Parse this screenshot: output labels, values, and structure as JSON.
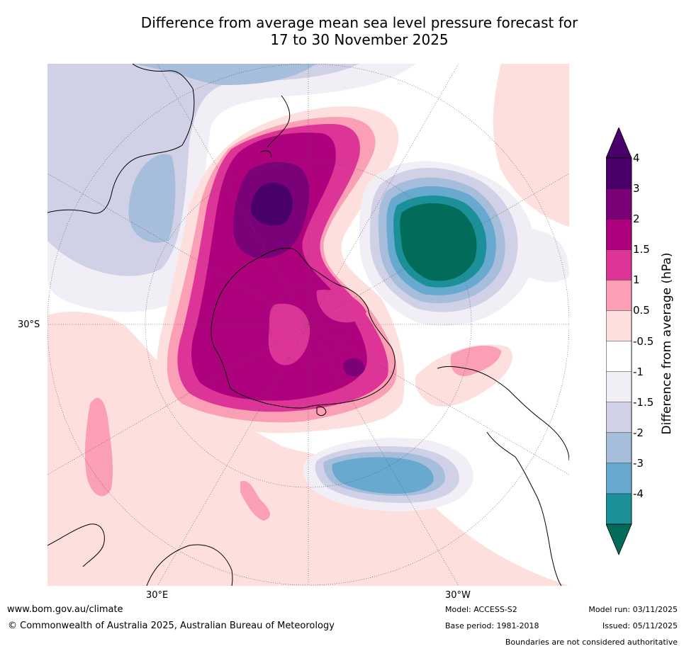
{
  "title": {
    "line1": "Difference from average mean sea level pressure forecast for",
    "line2": "17 to 30 November 2025"
  },
  "map": {
    "projection": "south-polar-stereographic",
    "region": "Southern Hemisphere, Australia centred",
    "gridlines": {
      "latitude_label": "30°S",
      "longitude_labels": [
        "30°E",
        "30°W"
      ]
    },
    "features": [
      {
        "name": "strong-positive-anomaly-over-australia",
        "value_hpa": 3
      },
      {
        "name": "positive-core-over-nt-qld",
        "value_hpa": 4
      },
      {
        "name": "negative-anomaly-east-of-australia",
        "value_hpa": -4
      },
      {
        "name": "negative-anomaly-south-of-south-america",
        "value_hpa": -3
      },
      {
        "name": "negative-anomaly-indian-ocean",
        "value_hpa": -1.5
      }
    ]
  },
  "colorbar": {
    "title": "Difference from average (hPa)",
    "levels": [
      {
        "label": "4",
        "color": "#49006a"
      },
      {
        "label": "3",
        "color": "#7a0177"
      },
      {
        "label": "2",
        "color": "#ae017e"
      },
      {
        "label": "1.5",
        "color": "#dd3497"
      },
      {
        "label": "1",
        "color": "#fa9fb5"
      },
      {
        "label": "0.5",
        "color": "#fde0dd"
      },
      {
        "label": "-0.5",
        "color": "#ffffff"
      },
      {
        "label": "-1",
        "color": "#f1eef6"
      },
      {
        "label": "-1.5",
        "color": "#d0d1e6"
      },
      {
        "label": "-2",
        "color": "#a6bddb"
      },
      {
        "label": "-3",
        "color": "#67a9cf"
      },
      {
        "label": "-4",
        "color": "#1c9099"
      }
    ],
    "extend_low_color": "#016c59"
  },
  "footer": {
    "url": "www.bom.gov.au/climate",
    "copyright": "© Commonwealth of Australia 2025, Australian Bureau of Meteorology",
    "model": "Model: ACCESS-S2",
    "base_period": "Base period: 1981-2018",
    "model_run": "Model run: 03/11/2025",
    "issued": "Issued: 05/11/2025",
    "disclaimer": "Boundaries are not considered authoritative"
  }
}
